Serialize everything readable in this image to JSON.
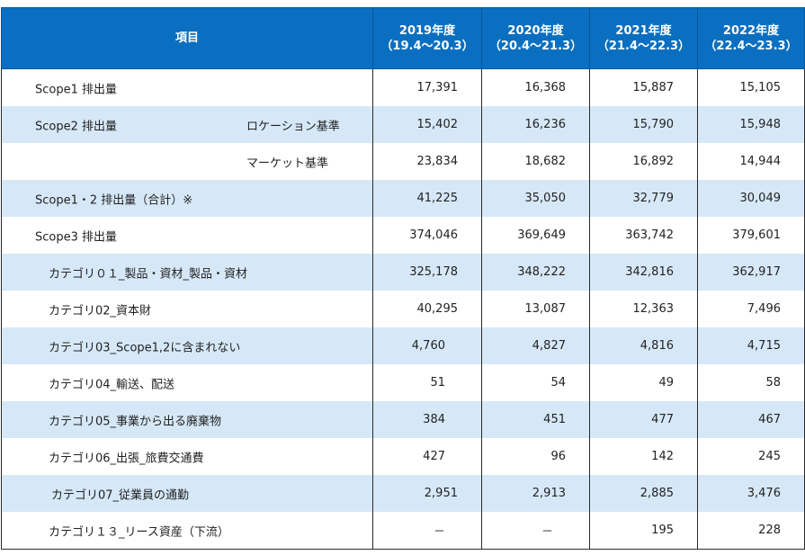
{
  "header": {
    "item": "項目",
    "years": [
      {
        "year": "2019年度",
        "range": "（19.4～20.3）"
      },
      {
        "year": "2020年度",
        "range": "（20.4～21.3）"
      },
      {
        "year": "2021年度",
        "range": "（21.4～22.3）"
      },
      {
        "year": "2022年度",
        "range": "（22.4～23.3）"
      }
    ]
  },
  "rows": [
    {
      "label": "Scope1 排出量",
      "sub": "",
      "values": [
        "17,391",
        "16,368",
        "15,887",
        "15,105"
      ]
    },
    {
      "label": "Scope2 排出量",
      "sub": "ロケーション基準",
      "values": [
        "15,402",
        "16,236",
        "15,790",
        "15,948"
      ]
    },
    {
      "label": "",
      "sub": "マーケット基準",
      "values": [
        "23,834",
        "18,682",
        "16,892",
        "14,944"
      ]
    },
    {
      "label": "Scope1・2 排出量（合計）※",
      "sub": "",
      "values": [
        "41,225",
        "35,050",
        "32,779",
        "30,049"
      ]
    },
    {
      "label": "Scope3 排出量",
      "sub": "",
      "values": [
        "374,046",
        "369,649",
        "363,742",
        "379,601"
      ]
    },
    {
      "label": "カテゴリ０１_製品・資材_製品・資材",
      "sub": "",
      "values": [
        "325,178",
        "348,222",
        "342,816",
        "362,917"
      ]
    },
    {
      "label": "カテゴリ02_資本財",
      "sub": "",
      "values": [
        "40,295",
        "13,087",
        "12,363",
        "7,496"
      ]
    },
    {
      "label": "カテゴリ03_Scope1,2に含まれない",
      "sub": "",
      "values": [
        "4,760",
        "4,827",
        "4,816",
        "4,715"
      ]
    },
    {
      "label": "カテゴリ04_輸送、配送",
      "sub": "",
      "values": [
        "51",
        "54",
        "49",
        "58"
      ]
    },
    {
      "label": "カテゴリ05_事業から出る廃棄物",
      "sub": "",
      "values": [
        "384",
        "451",
        "477",
        "467"
      ]
    },
    {
      "label": "カテゴリ06_出張_旅費交通費",
      "sub": "",
      "values": [
        "427",
        "96",
        "142",
        "245"
      ]
    },
    {
      "label": "カテゴリ07_従業員の通勤",
      "sub": "",
      "values": [
        "2,951",
        "2,913",
        "2,885",
        "3,476"
      ]
    },
    {
      "label": "カテゴリ１３_リース資産（下流）",
      "sub": "",
      "values": [
        "－",
        "－",
        "195",
        "228"
      ]
    }
  ]
}
